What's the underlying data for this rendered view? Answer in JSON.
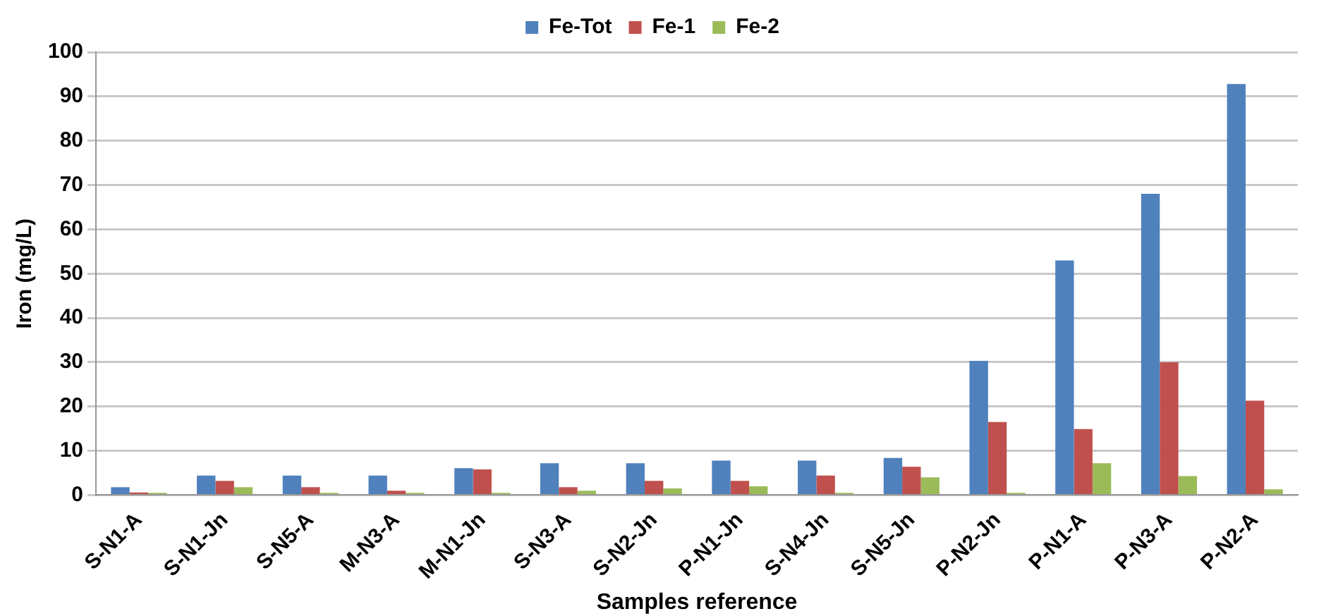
{
  "chart_data": {
    "type": "bar",
    "xlabel": "Samples reference",
    "ylabel": "Iron (mg/L)",
    "categories": [
      "S-N1-A",
      "S-N1-Jn",
      "S-N5-A",
      "M-N3-A",
      "M-N1-Jn",
      "S-N3-A",
      "S-N2-Jn",
      "P-N1-Jn",
      "S-N4-Jn",
      "S-N5-Jn",
      "P-N2-Jn",
      "P-N1-A",
      "P-N3-A",
      "P-N2-A"
    ],
    "series": [
      {
        "name": "Fe-Tot",
        "color": "#4f81bd",
        "values": [
          1.8,
          4.4,
          4.4,
          4.4,
          6.1,
          7.2,
          7.2,
          7.8,
          7.8,
          8.4,
          30.3,
          53,
          68,
          92.8
        ]
      },
      {
        "name": "Fe-1",
        "color": "#c0504d",
        "values": [
          0.6,
          3.2,
          1.8,
          1.0,
          5.8,
          1.8,
          3.2,
          3.2,
          4.4,
          6.4,
          16.5,
          14.9,
          30,
          21.3
        ]
      },
      {
        "name": "Fe-2",
        "color": "#9bbb59",
        "values": [
          0.5,
          1.8,
          0.5,
          0.5,
          0.5,
          1.0,
          1.5,
          2.0,
          0.5,
          4.0,
          0.5,
          7.2,
          4.3,
          1.3
        ]
      }
    ],
    "ylim": [
      0,
      100
    ],
    "yticks": [
      0,
      10,
      20,
      30,
      40,
      50,
      60,
      70,
      80,
      90,
      100
    ],
    "grid": "y",
    "legend": "top"
  }
}
